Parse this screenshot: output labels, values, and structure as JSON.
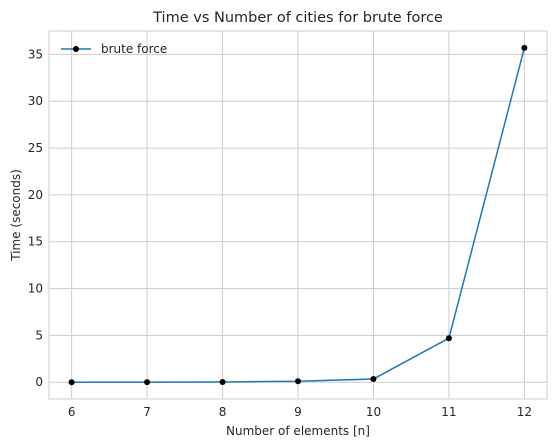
{
  "chart_data": {
    "type": "line",
    "title": "Time vs Number of cities for brute force",
    "xlabel": "Number of elements [n]",
    "ylabel": "Time (seconds)",
    "x": [
      6,
      7,
      8,
      9,
      10,
      11,
      12
    ],
    "series": [
      {
        "name": "brute force",
        "values": [
          0.002,
          0.01,
          0.03,
          0.1,
          0.35,
          4.7,
          35.7
        ]
      }
    ],
    "xticks": [
      6,
      7,
      8,
      9,
      10,
      11,
      12
    ],
    "yticks": [
      0,
      5,
      10,
      15,
      20,
      25,
      30,
      35
    ],
    "xlim": [
      5.7,
      12.3
    ],
    "ylim": [
      -1.79,
      37.5
    ],
    "grid": true,
    "legend_position": "top-left",
    "colors": {
      "line": "#1f77b4",
      "marker": "#000000",
      "grid": "#cccccc"
    }
  }
}
